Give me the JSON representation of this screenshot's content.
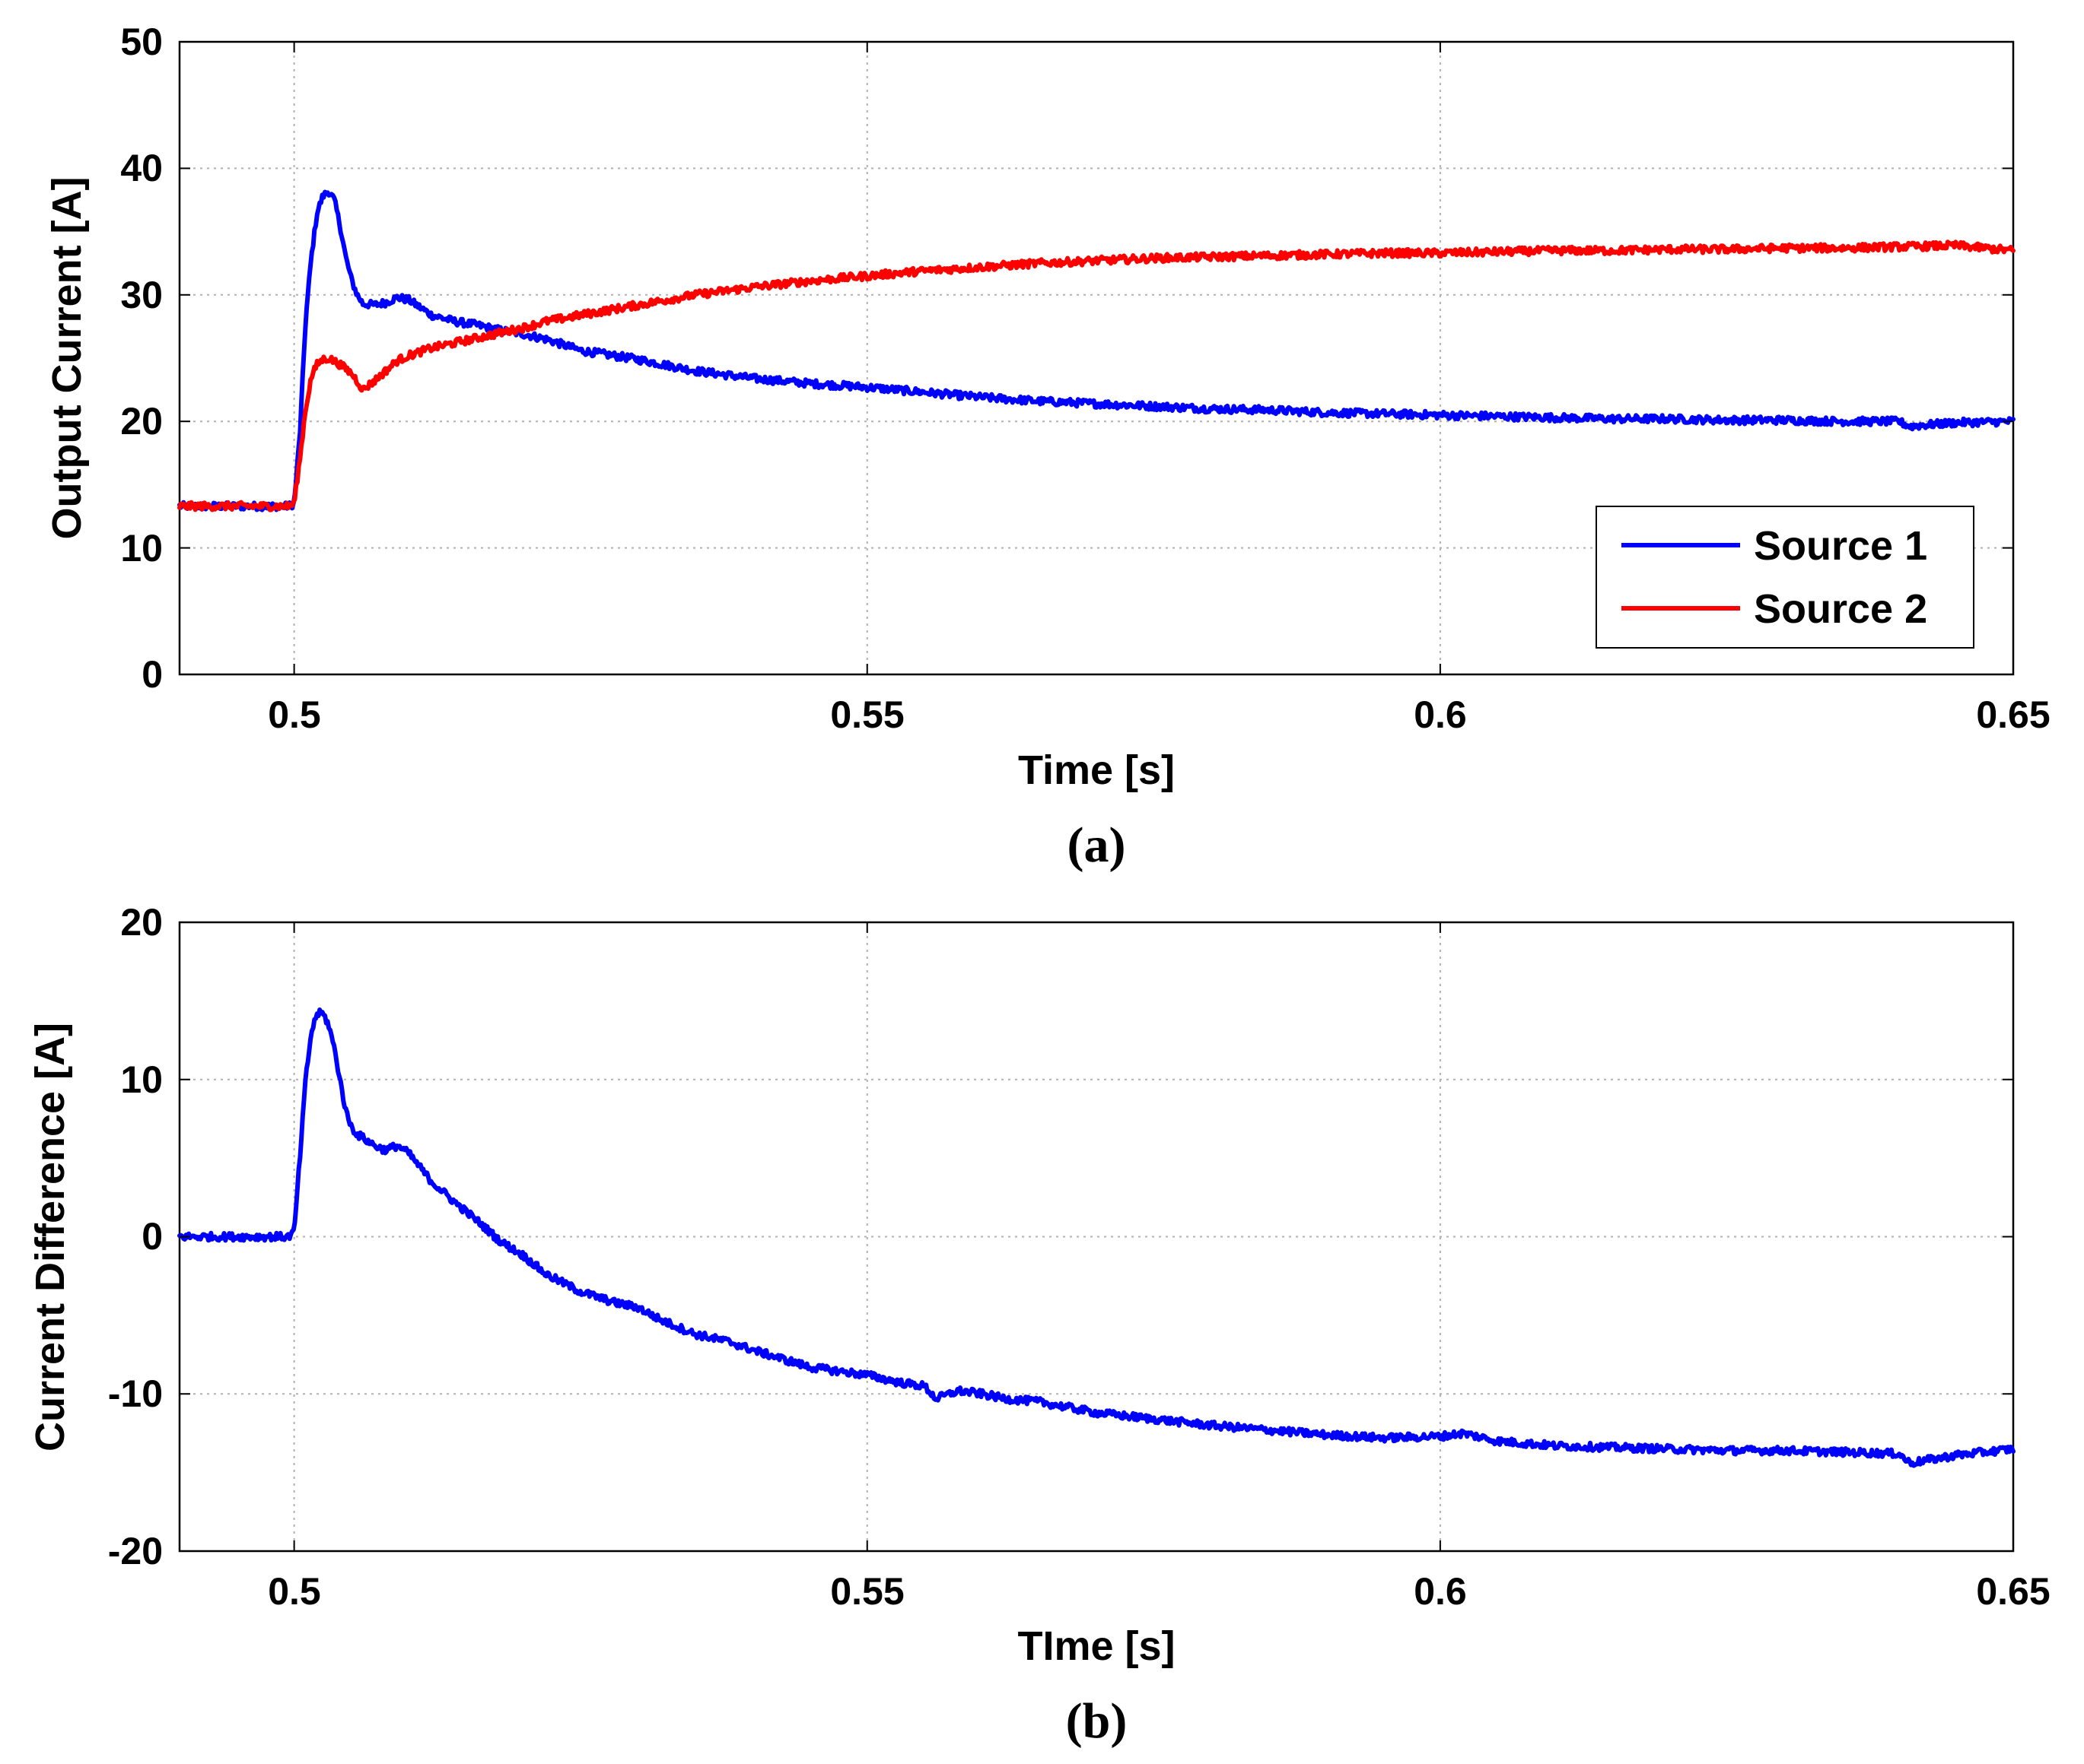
{
  "chart_data": [
    {
      "type": "line",
      "caption": "(a)",
      "xlabel": "Time [s]",
      "ylabel": "Output Current [A]",
      "xlim": [
        0.49,
        0.65
      ],
      "ylim": [
        0,
        50
      ],
      "xticks": [
        0.5,
        0.55,
        0.6,
        0.65
      ],
      "xtick_labels": [
        "0.5",
        "0.55",
        "0.6",
        "0.65"
      ],
      "yticks": [
        0,
        10,
        20,
        30,
        40,
        50
      ],
      "ytick_labels": [
        "0",
        "10",
        "20",
        "30",
        "40",
        "50"
      ],
      "grid": true,
      "legend_position": "bottom-right",
      "series": [
        {
          "name": "Source 1",
          "color": "#0000ff",
          "x": [
            0.49,
            0.4995,
            0.5,
            0.5005,
            0.501,
            0.5015,
            0.502,
            0.5025,
            0.503,
            0.5035,
            0.504,
            0.5045,
            0.505,
            0.5055,
            0.506,
            0.507,
            0.508,
            0.509,
            0.51,
            0.511,
            0.512,
            0.514,
            0.516,
            0.518,
            0.52,
            0.522,
            0.525,
            0.53,
            0.535,
            0.54,
            0.545,
            0.55,
            0.555,
            0.56,
            0.565,
            0.57,
            0.575,
            0.58,
            0.585,
            0.59,
            0.595,
            0.6,
            0.605,
            0.61,
            0.615,
            0.62,
            0.625,
            0.63,
            0.635,
            0.64,
            0.641,
            0.642,
            0.645,
            0.65
          ],
          "y": [
            13.3,
            13.3,
            13.5,
            19,
            28,
            33,
            36.5,
            37.8,
            38.2,
            37.5,
            35.5,
            33,
            31.2,
            30,
            29.3,
            29.2,
            29.4,
            29.8,
            29.6,
            29,
            28.4,
            27.9,
            27.6,
            27.2,
            26.9,
            26.5,
            25.6,
            24.9,
            24,
            23.4,
            23,
            22.7,
            22.3,
            21.9,
            21.6,
            21.4,
            21.2,
            21,
            20.9,
            20.7,
            20.6,
            20.5,
            20.4,
            20.3,
            20.2,
            20.2,
            20.1,
            20.1,
            20,
            20,
            19.6,
            19.7,
            19.9,
            20
          ]
        },
        {
          "name": "Source 2",
          "color": "#ff0000",
          "x": [
            0.49,
            0.4995,
            0.5,
            0.5005,
            0.501,
            0.5015,
            0.502,
            0.5025,
            0.503,
            0.504,
            0.505,
            0.5055,
            0.506,
            0.507,
            0.508,
            0.509,
            0.51,
            0.512,
            0.514,
            0.516,
            0.518,
            0.52,
            0.522,
            0.525,
            0.53,
            0.535,
            0.54,
            0.545,
            0.55,
            0.555,
            0.56,
            0.565,
            0.57,
            0.575,
            0.58,
            0.585,
            0.59,
            0.595,
            0.6,
            0.605,
            0.61,
            0.615,
            0.62,
            0.625,
            0.63,
            0.635,
            0.64,
            0.645,
            0.65
          ],
          "y": [
            13.3,
            13.3,
            13.5,
            17,
            21,
            23.5,
            24.5,
            24.9,
            25,
            24.5,
            23.8,
            23.2,
            22.5,
            23.2,
            24,
            24.8,
            25.2,
            25.8,
            26.2,
            26.6,
            27,
            27.4,
            27.9,
            28.4,
            29.2,
            30,
            30.6,
            31.1,
            31.5,
            31.9,
            32.2,
            32.5,
            32.7,
            32.9,
            33,
            33.1,
            33.2,
            33.3,
            33.3,
            33.4,
            33.5,
            33.5,
            33.6,
            33.6,
            33.7,
            33.7,
            33.8,
            33.9,
            33.5
          ]
        }
      ]
    },
    {
      "type": "line",
      "caption": "(b)",
      "xlabel": "TIme [s]",
      "ylabel": "Current Difference [A]",
      "xlim": [
        0.49,
        0.65
      ],
      "ylim": [
        -20,
        20
      ],
      "xticks": [
        0.5,
        0.55,
        0.6,
        0.65
      ],
      "xtick_labels": [
        "0.5",
        "0.55",
        "0.6",
        "0.65"
      ],
      "yticks": [
        -20,
        -10,
        0,
        10,
        20
      ],
      "ytick_labels": [
        "-20",
        "-10",
        "0",
        "10",
        "20"
      ],
      "grid": true,
      "series": [
        {
          "name": "Current Difference",
          "color": "#0000ff",
          "x": [
            0.49,
            0.4995,
            0.5,
            0.5005,
            0.501,
            0.5015,
            0.502,
            0.5025,
            0.503,
            0.5035,
            0.504,
            0.5045,
            0.505,
            0.5055,
            0.506,
            0.507,
            0.508,
            0.509,
            0.51,
            0.512,
            0.514,
            0.516,
            0.518,
            0.52,
            0.522,
            0.525,
            0.528,
            0.53,
            0.532,
            0.535,
            0.538,
            0.54,
            0.545,
            0.55,
            0.553,
            0.555,
            0.556,
            0.558,
            0.56,
            0.562,
            0.565,
            0.57,
            0.575,
            0.58,
            0.585,
            0.59,
            0.595,
            0.6,
            0.602,
            0.605,
            0.61,
            0.615,
            0.62,
            0.625,
            0.63,
            0.635,
            0.64,
            0.641,
            0.645,
            0.65
          ],
          "y": [
            0,
            0,
            0.3,
            5,
            10,
            13,
            14.2,
            14.2,
            13.5,
            12,
            10,
            8,
            7,
            6.5,
            6.3,
            5.8,
            5.5,
            5.8,
            5.3,
            3.5,
            2.2,
            1,
            -0.3,
            -1.2,
            -2.4,
            -3.5,
            -4.2,
            -4.5,
            -5.3,
            -6.2,
            -6.7,
            -7.2,
            -8.3,
            -8.8,
            -9.3,
            -9.5,
            -10.3,
            -9.8,
            -10,
            -10.3,
            -10.5,
            -11.2,
            -11.6,
            -12,
            -12.3,
            -12.6,
            -12.8,
            -12.7,
            -12.5,
            -13,
            -13.3,
            -13.4,
            -13.5,
            -13.6,
            -13.6,
            -13.7,
            -13.8,
            -14.4,
            -13.9,
            -13.5
          ]
        }
      ]
    }
  ]
}
